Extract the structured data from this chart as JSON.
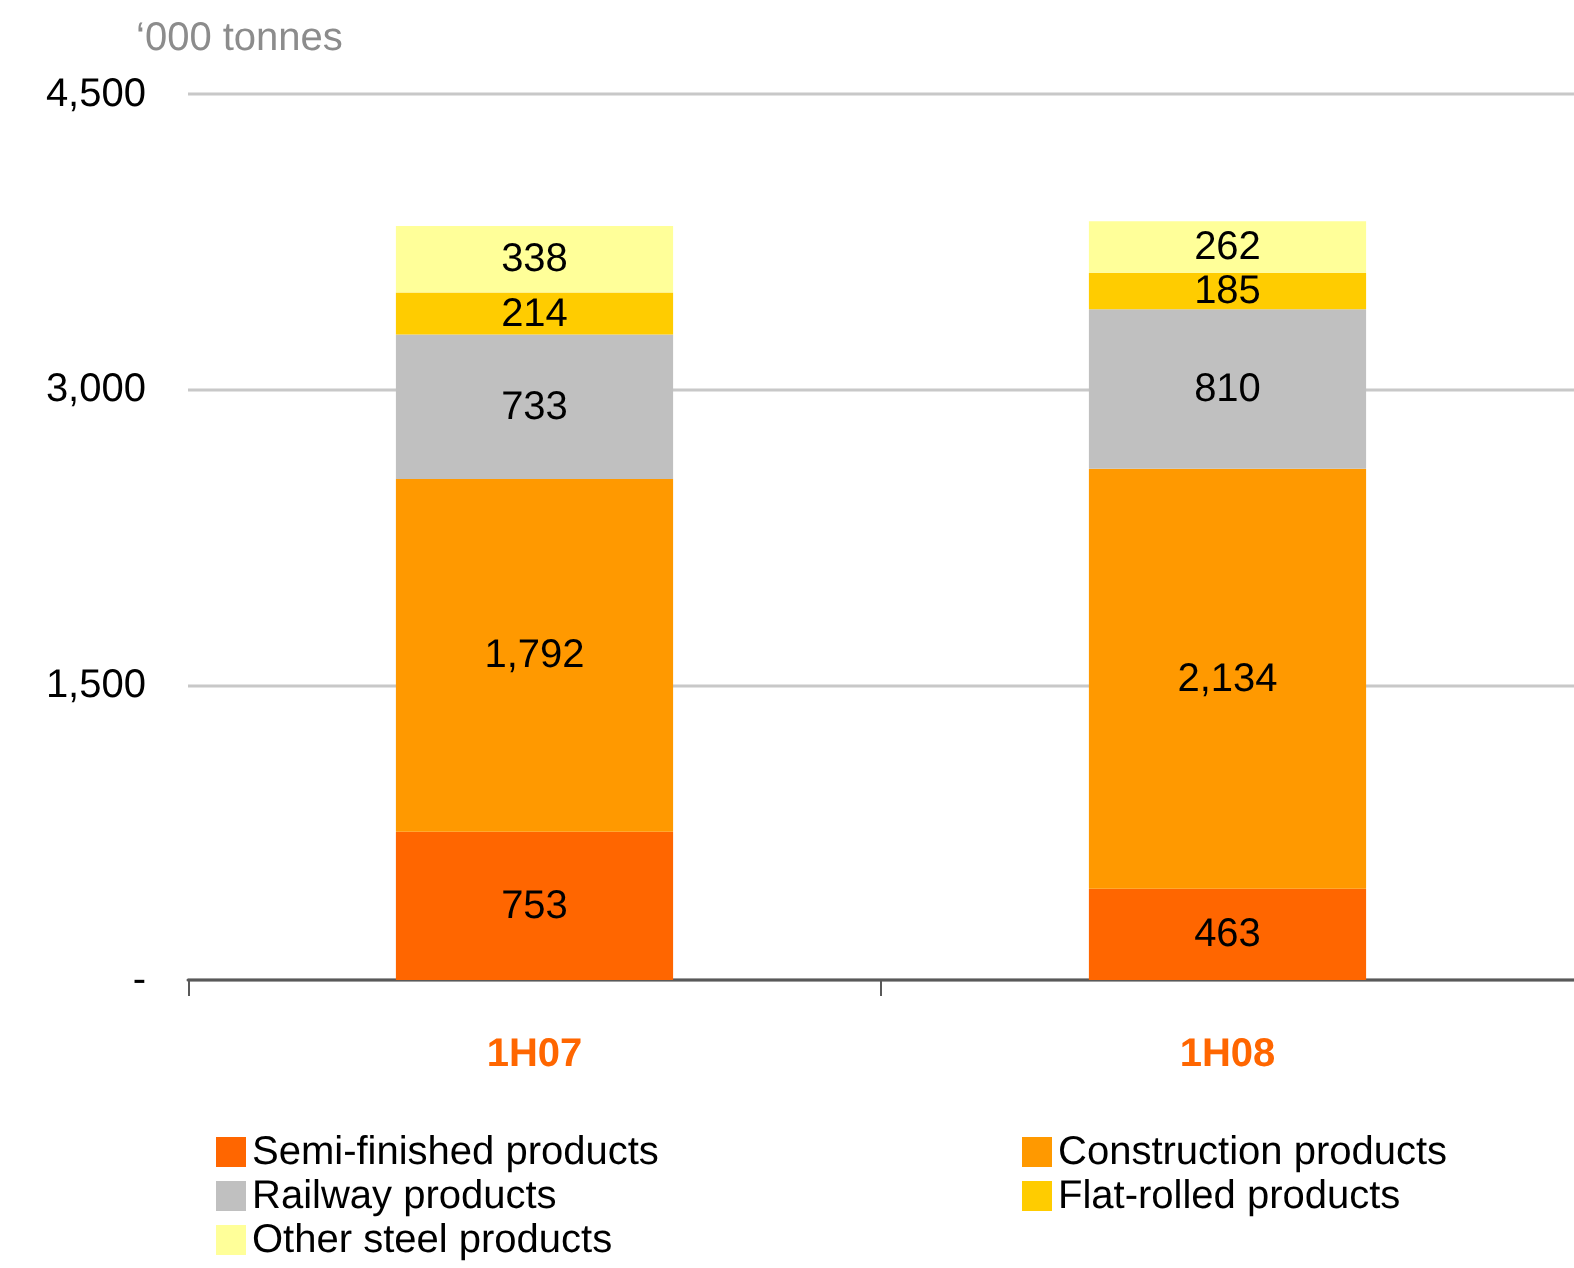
{
  "chart_data": {
    "type": "bar",
    "stacked": true,
    "ylabel": "‘000 tonnes",
    "categories": [
      "1H07",
      "1H08"
    ],
    "series": [
      {
        "name": "Semi-finished products",
        "color": "#ff6600",
        "values": [
          753,
          463
        ],
        "value_labels": [
          "753",
          "463"
        ]
      },
      {
        "name": "Construction products",
        "color": "#ff9900",
        "values": [
          1792,
          2134
        ],
        "value_labels": [
          "1,792",
          "2,134"
        ]
      },
      {
        "name": "Railway products",
        "color": "#c0c0c0",
        "values": [
          733,
          810
        ],
        "value_labels": [
          "733",
          "810"
        ]
      },
      {
        "name": "Flat-rolled products",
        "color": "#ffcc00",
        "values": [
          214,
          185
        ],
        "value_labels": [
          "214",
          "185"
        ]
      },
      {
        "name": "Other steel products",
        "color": "#ffff99",
        "values": [
          338,
          262
        ],
        "value_labels": [
          "338",
          "262"
        ]
      }
    ],
    "ylim": [
      0,
      4500
    ],
    "yticks": [
      {
        "value": 0,
        "label": "-"
      },
      {
        "value": 1500,
        "label": "1,500"
      },
      {
        "value": 3000,
        "label": "3,000"
      },
      {
        "value": 4500,
        "label": "4,500"
      }
    ],
    "grid": "y",
    "legend": "bottom"
  }
}
